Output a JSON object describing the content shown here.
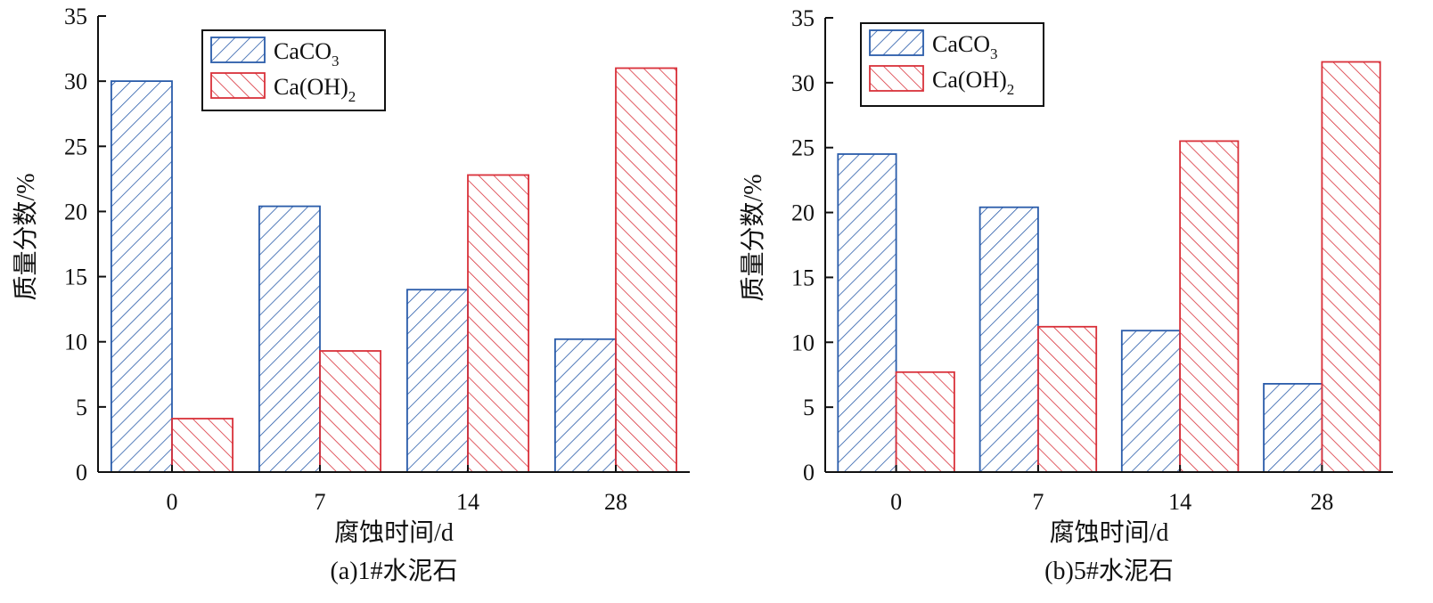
{
  "chart_data": [
    {
      "type": "bar",
      "caption": "(a)1#水泥石",
      "xlabel": "腐蚀时间/d",
      "ylabel": "质量分数/%",
      "categories": [
        "0",
        "7",
        "14",
        "28"
      ],
      "ylim": [
        0,
        35
      ],
      "yticks": [
        0,
        5,
        10,
        15,
        20,
        25,
        30,
        35
      ],
      "legend_position": "top-left",
      "grid": false,
      "series": [
        {
          "name": "CaCO",
          "name_sub": "3",
          "color": "#2a5caa",
          "hatch": "forward-diagonal",
          "values": [
            30.0,
            20.4,
            14.0,
            10.2
          ]
        },
        {
          "name": "Ca(OH)",
          "name_sub": "2",
          "color": "#d9313a",
          "hatch": "back-diagonal",
          "values": [
            4.1,
            9.3,
            22.8,
            31.0
          ]
        }
      ]
    },
    {
      "type": "bar",
      "caption": "(b)5#水泥石",
      "xlabel": "腐蚀时间/d",
      "ylabel": "质量分数/%",
      "categories": [
        "0",
        "7",
        "14",
        "28"
      ],
      "ylim": [
        0,
        35
      ],
      "yticks": [
        0,
        5,
        10,
        15,
        20,
        25,
        30,
        35
      ],
      "legend_position": "top-left",
      "grid": false,
      "series": [
        {
          "name": "CaCO",
          "name_sub": "3",
          "color": "#2a5caa",
          "hatch": "forward-diagonal",
          "values": [
            24.5,
            20.4,
            10.9,
            6.8
          ]
        },
        {
          "name": "Ca(OH)",
          "name_sub": "2",
          "color": "#d9313a",
          "hatch": "back-diagonal",
          "values": [
            7.7,
            11.2,
            25.5,
            31.6
          ]
        }
      ]
    }
  ]
}
